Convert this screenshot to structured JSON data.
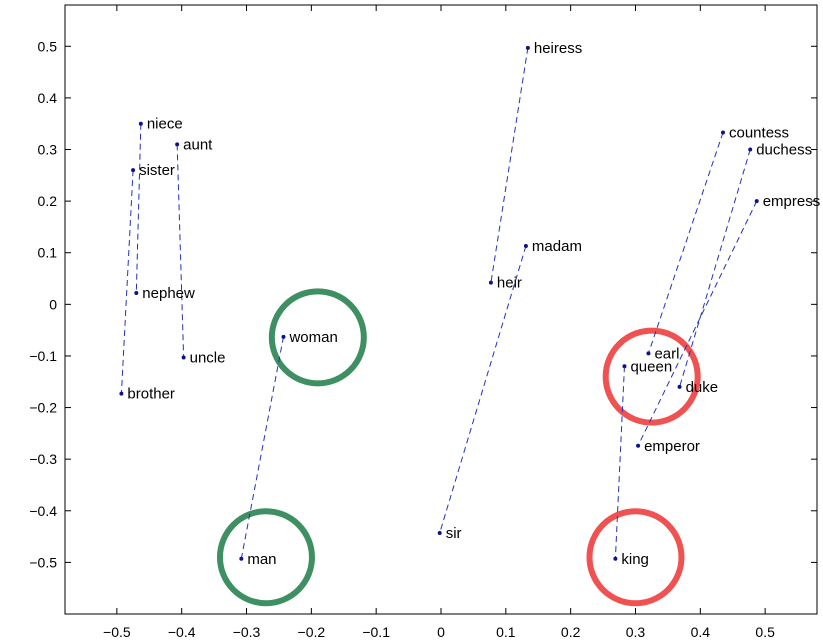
{
  "chart_data": {
    "type": "scatter",
    "title": "",
    "xlabel": "",
    "ylabel": "",
    "xlim": [
      -0.58,
      0.58
    ],
    "ylim": [
      -0.6,
      0.58
    ],
    "x_ticks": [
      -0.5,
      -0.4,
      -0.3,
      -0.2,
      -0.1,
      0,
      0.1,
      0.2,
      0.3,
      0.4,
      0.5
    ],
    "x_tick_labels": [
      "−0.5",
      "−0.4",
      "−0.3",
      "−0.2",
      "−0.1",
      "0",
      "0.1",
      "0.2",
      "0.3",
      "0.4",
      "0.5"
    ],
    "y_ticks": [
      0.5,
      0.4,
      0.3,
      0.2,
      0.1,
      0,
      -0.1,
      -0.2,
      -0.3,
      -0.4,
      -0.5
    ],
    "y_tick_labels": [
      "0.5",
      "0.4",
      "0.3",
      "0.2",
      "0.1",
      "0",
      "−0.1",
      "−0.2",
      "−0.3",
      "−0.4",
      "−0.5"
    ],
    "grid": false,
    "points": [
      {
        "label": "niece",
        "x": -0.463,
        "y": 0.35
      },
      {
        "label": "aunt",
        "x": -0.407,
        "y": 0.31
      },
      {
        "label": "sister",
        "x": -0.475,
        "y": 0.26
      },
      {
        "label": "nephew",
        "x": -0.47,
        "y": 0.022
      },
      {
        "label": "uncle",
        "x": -0.397,
        "y": -0.103
      },
      {
        "label": "brother",
        "x": -0.493,
        "y": -0.173
      },
      {
        "label": "woman",
        "x": -0.243,
        "y": -0.063
      },
      {
        "label": "man",
        "x": -0.308,
        "y": -0.493
      },
      {
        "label": "heiress",
        "x": 0.134,
        "y": 0.497
      },
      {
        "label": "madam",
        "x": 0.131,
        "y": 0.113
      },
      {
        "label": "heir",
        "x": 0.077,
        "y": 0.042
      },
      {
        "label": "sir",
        "x": -0.002,
        "y": -0.443
      },
      {
        "label": "countess",
        "x": 0.435,
        "y": 0.333
      },
      {
        "label": "duchess",
        "x": 0.477,
        "y": 0.3
      },
      {
        "label": "empress",
        "x": 0.487,
        "y": 0.2
      },
      {
        "label": "earl",
        "x": 0.32,
        "y": -0.095
      },
      {
        "label": "queen",
        "x": 0.283,
        "y": -0.12
      },
      {
        "label": "duke",
        "x": 0.368,
        "y": -0.16
      },
      {
        "label": "emperor",
        "x": 0.304,
        "y": -0.274
      },
      {
        "label": "king",
        "x": 0.269,
        "y": -0.493
      }
    ],
    "pairs": [
      [
        "niece",
        "nephew"
      ],
      [
        "aunt",
        "uncle"
      ],
      [
        "sister",
        "brother"
      ],
      [
        "woman",
        "man"
      ],
      [
        "heiress",
        "heir"
      ],
      [
        "madam",
        "sir"
      ],
      [
        "countess",
        "earl"
      ],
      [
        "duchess",
        "duke"
      ],
      [
        "empress",
        "emperor"
      ],
      [
        "queen",
        "king"
      ]
    ],
    "line_color": "#2233bb",
    "point_color": "#11118a",
    "highlights": [
      {
        "x": -0.19,
        "y": -0.064,
        "color": "#3e8f62"
      },
      {
        "x": -0.27,
        "y": -0.49,
        "color": "#3e8f62"
      },
      {
        "x": 0.325,
        "y": -0.14,
        "color": "#f05252"
      },
      {
        "x": 0.3,
        "y": -0.49,
        "color": "#f05252"
      }
    ]
  }
}
